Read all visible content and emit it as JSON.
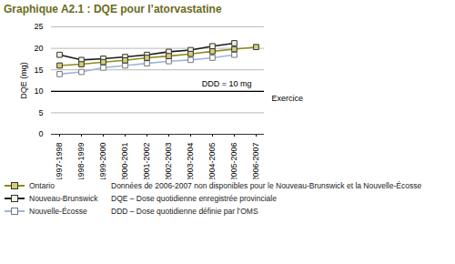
{
  "chart_data": {
    "type": "line",
    "title": "Graphique A2.1 : DQE pour l’atorvastatine",
    "y_label": "DQE (mg)",
    "x_label": "Exercice",
    "categories": [
      "1997-1998",
      "1998-1999",
      "1999-2000",
      "2000-2001",
      "2001-2002",
      "2002-2003",
      "2003-2004",
      "2004-2005",
      "2005-2006",
      "2006-2007"
    ],
    "series": [
      {
        "name": "Ontario",
        "color": "#8c8c1e",
        "marker": "square",
        "line_style": "solid",
        "values": [
          16,
          16.3,
          16.8,
          17.2,
          17.8,
          18.2,
          18.7,
          19.3,
          19.8,
          20.3
        ]
      },
      {
        "name": "Nouveau-Brunswick",
        "color": "#1a1a1a",
        "marker": "square",
        "line_style": "solid",
        "values": [
          18.5,
          17.3,
          17.6,
          18,
          18.5,
          19.2,
          19.6,
          20.5,
          21.2,
          null
        ]
      },
      {
        "name": "Nouvelle-Écosse",
        "color": "#9fb6d6",
        "marker": "square",
        "line_style": "solid",
        "values": [
          14,
          14.5,
          15.5,
          16,
          16.5,
          17,
          17.3,
          17.8,
          18.5,
          null
        ]
      }
    ],
    "ylim": [
      0,
      25
    ],
    "yticks": [
      0,
      5,
      10,
      15,
      20,
      25
    ],
    "grid": true,
    "reference_line": {
      "value": 10,
      "label": "DDD = 10 mg"
    },
    "notes": [
      "Données de 2006-2007 non disponibles pour le Nouveau-Brunswick et la Nouvelle-Écosse",
      "DQE – Dose quotidienne enregistrée provinciale",
      "DDD – Dose quotidienne définie par l’OMS"
    ]
  }
}
